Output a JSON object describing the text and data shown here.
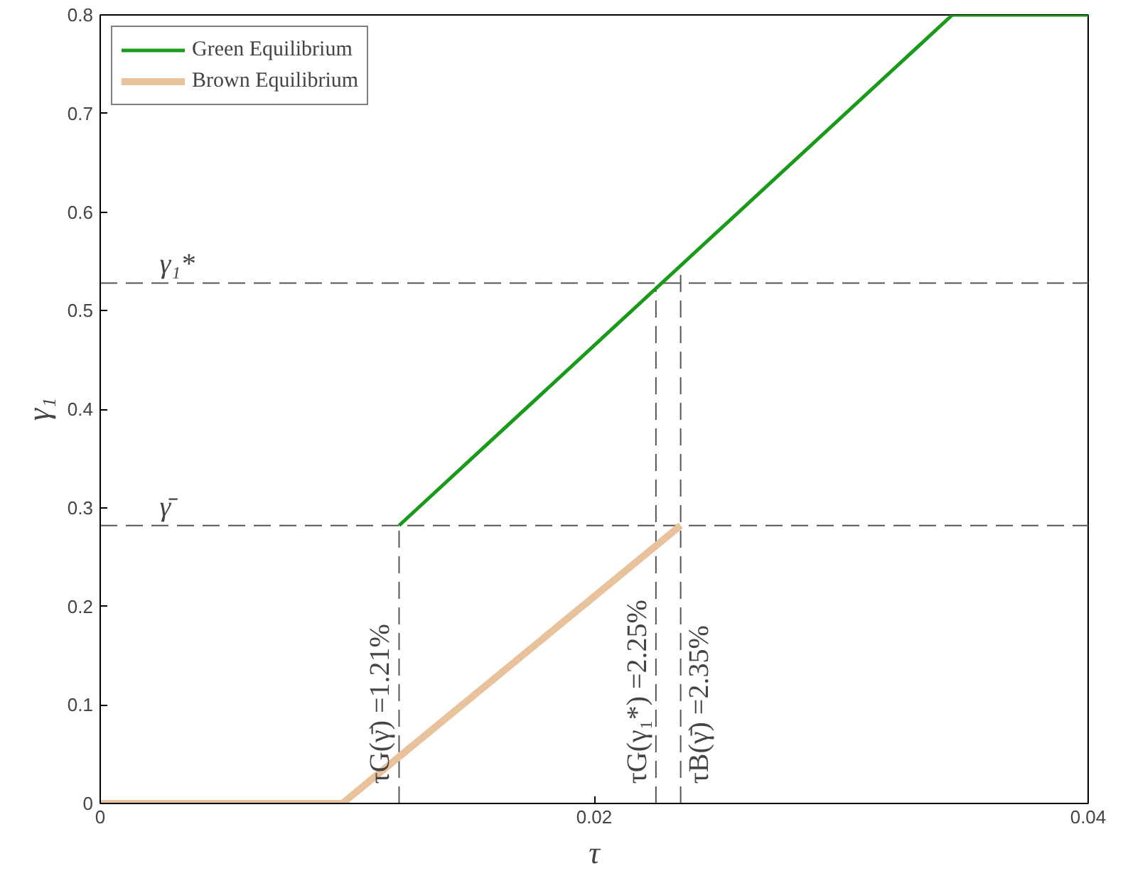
{
  "chart_data": {
    "type": "line",
    "xlabel": "τ",
    "ylabel": "γ₁",
    "series": [
      {
        "name": "Green Equilibrium",
        "color": "#1a9a1a",
        "x": [
          0.0121,
          0.0345,
          0.04
        ],
        "values": [
          0.282,
          0.8,
          0.8
        ]
      },
      {
        "name": "Brown Equilibrium",
        "color": "#e8c29c",
        "x": [
          0,
          0.0098,
          0.0235
        ],
        "values": [
          0,
          0,
          0.282
        ]
      }
    ],
    "xlim": [
      0,
      0.04
    ],
    "xticks": [
      0,
      0.02,
      0.04
    ],
    "ylim": [
      0,
      0.8
    ],
    "yticks": [
      0,
      0.1,
      0.2,
      0.3,
      0.4,
      0.5,
      0.6,
      0.7,
      0.8
    ],
    "ref_lines": [
      {
        "axis": "y",
        "value": 0.528,
        "label": "γ₁*",
        "color": "#555555",
        "line_style": "dashed"
      },
      {
        "axis": "y",
        "value": 0.282,
        "label": "γ̄",
        "color": "#555555",
        "line_style": "dashed"
      },
      {
        "axis": "x",
        "value": 0.0121,
        "label": "τG(γ̄) =1.21%",
        "color": "#555555",
        "line_style": "dashed"
      },
      {
        "axis": "x",
        "value": 0.0225,
        "label": "τG(γ₁*) =2.25%",
        "color": "#555555",
        "line_style": "dashed"
      },
      {
        "axis": "x",
        "value": 0.0235,
        "label": "τB(γ̄) =2.35%",
        "color": "#555555",
        "line_style": "dashed"
      }
    ],
    "legend": "top left",
    "grid": false
  }
}
